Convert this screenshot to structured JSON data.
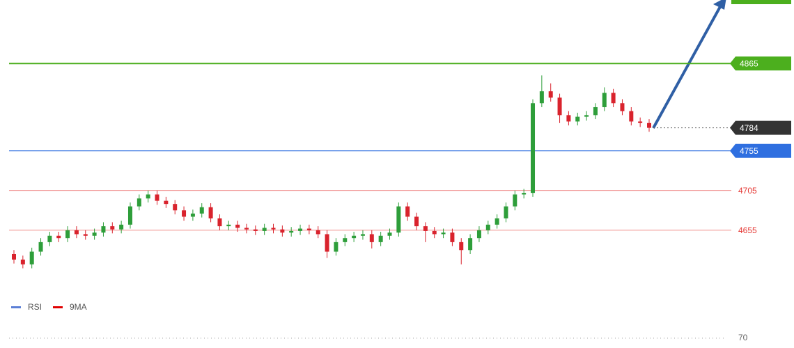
{
  "chart_data": {
    "type": "candlestick",
    "ylim": [
      4568,
      4945
    ],
    "open": [
      4625,
      4618,
      4612,
      4628,
      4640,
      4648,
      4645,
      4655,
      4650,
      4648,
      4652,
      4660,
      4656,
      4662,
      4685,
      4695,
      4700,
      4692,
      4688,
      4680,
      4672,
      4676,
      4684,
      4670,
      4660,
      4662,
      4658,
      4656,
      4654,
      4658,
      4656,
      4652,
      4654,
      4657,
      4655,
      4650,
      4628,
      4640,
      4645,
      4648,
      4650,
      4640,
      4648,
      4652,
      4685,
      4672,
      4660,
      4654,
      4650,
      4652,
      4640,
      4630,
      4645,
      4655,
      4662,
      4670,
      4685,
      4700,
      4702,
      4815,
      4830,
      4822,
      4800,
      4792,
      4798,
      4800,
      4810,
      4828,
      4815,
      4805,
      4792,
      4790
    ],
    "high": [
      4630,
      4623,
      4633,
      4645,
      4653,
      4653,
      4660,
      4660,
      4655,
      4657,
      4665,
      4665,
      4667,
      4690,
      4700,
      4705,
      4705,
      4697,
      4693,
      4685,
      4681,
      4689,
      4689,
      4675,
      4667,
      4667,
      4663,
      4661,
      4663,
      4663,
      4661,
      4659,
      4662,
      4662,
      4660,
      4655,
      4645,
      4650,
      4653,
      4655,
      4655,
      4653,
      4657,
      4690,
      4690,
      4677,
      4665,
      4659,
      4657,
      4657,
      4645,
      4650,
      4660,
      4667,
      4675,
      4690,
      4705,
      4707,
      4820,
      4850,
      4840,
      4827,
      4805,
      4803,
      4805,
      4815,
      4835,
      4833,
      4820,
      4810,
      4797,
      4795
    ],
    "low": [
      4613,
      4607,
      4607,
      4623,
      4635,
      4640,
      4640,
      4645,
      4643,
      4643,
      4647,
      4651,
      4651,
      4657,
      4680,
      4690,
      4687,
      4683,
      4675,
      4667,
      4667,
      4671,
      4665,
      4655,
      4655,
      4653,
      4651,
      4649,
      4649,
      4651,
      4647,
      4647,
      4649,
      4650,
      4645,
      4620,
      4623,
      4635,
      4640,
      4643,
      4632,
      4635,
      4643,
      4647,
      4667,
      4655,
      4640,
      4645,
      4645,
      4635,
      4612,
      4625,
      4640,
      4650,
      4657,
      4665,
      4680,
      4695,
      4697,
      4810,
      4817,
      4790,
      4787,
      4787,
      4793,
      4795,
      4805,
      4810,
      4800,
      4787,
      4785,
      4779
    ],
    "close": [
      4618,
      4612,
      4628,
      4640,
      4648,
      4645,
      4655,
      4650,
      4648,
      4652,
      4660,
      4656,
      4662,
      4685,
      4695,
      4700,
      4692,
      4688,
      4680,
      4672,
      4676,
      4684,
      4670,
      4660,
      4662,
      4658,
      4656,
      4654,
      4658,
      4656,
      4652,
      4654,
      4657,
      4655,
      4650,
      4628,
      4640,
      4645,
      4648,
      4650,
      4640,
      4648,
      4652,
      4685,
      4672,
      4660,
      4654,
      4650,
      4652,
      4640,
      4630,
      4645,
      4655,
      4662,
      4670,
      4685,
      4700,
      4702,
      4815,
      4830,
      4822,
      4800,
      4792,
      4798,
      4800,
      4810,
      4828,
      4815,
      4805,
      4792,
      4790,
      4784
    ],
    "up_color": "#2e9e3a",
    "down_color": "#d9232d",
    "levels": [
      {
        "value": 4865,
        "color": "#4caf1e",
        "style": "tag"
      },
      {
        "value": 4784,
        "color": "#333333",
        "style": "current"
      },
      {
        "value": 4755,
        "color": "#2f6fe0",
        "style": "tag"
      },
      {
        "value": 4705,
        "color": "#e53935",
        "style": "text"
      },
      {
        "value": 4655,
        "color": "#e53935",
        "style": "text"
      }
    ],
    "rsi_pane": {
      "legend": [
        {
          "name": "RSI",
          "color": "#5b7fd6"
        },
        {
          "name": "9MA",
          "color": "#e00000"
        }
      ],
      "ylim": [
        0,
        100
      ],
      "yticks": [
        70
      ]
    }
  }
}
